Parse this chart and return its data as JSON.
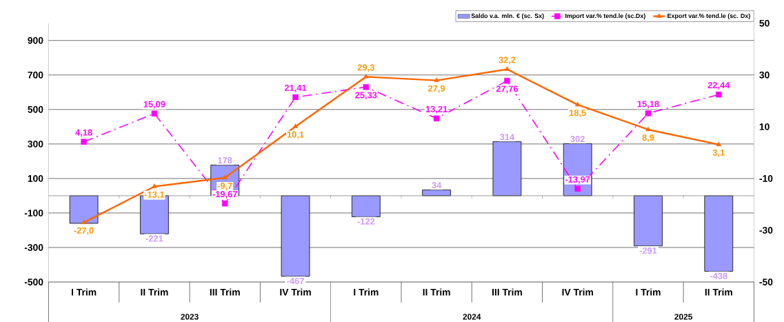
{
  "chart_data": {
    "type": "bar",
    "categories": [
      "I Trim",
      "II Trim",
      "III Trim",
      "IV Trim",
      "I Trim",
      "II Trim",
      "III Trim",
      "IV Trim",
      "I Trim",
      "II Trim"
    ],
    "series": [
      {
        "name": "Saldo v.a. mln. € (sc. Sx)",
        "color": "#9999ff",
        "values": [
          -160,
          -221,
          178,
          -467,
          -122,
          34,
          314,
          302,
          -291,
          -438
        ],
        "value_labels": [
          null,
          "-221",
          "178",
          "-467",
          "-122",
          "34",
          "314",
          "302",
          "-291",
          "-438"
        ]
      },
      {
        "type": "line",
        "axis": "y2",
        "name": "Import var.% tend.le (sc.Dx)",
        "color": "#ff00ff",
        "marker": "square",
        "line_style": "dashdot",
        "values": [
          4.18,
          15.09,
          -19.67,
          21.41,
          25.33,
          13.21,
          27.76,
          -13.97,
          15.18,
          22.44
        ],
        "value_labels": [
          "4,18",
          "15,09",
          "-19,67",
          "21,41",
          "25,33",
          "13,21",
          "27,76",
          "-13,97",
          "15,18",
          "22,44"
        ]
      },
      {
        "type": "line",
        "axis": "y2",
        "name": "Export var.% tend.le (sc. Dx)",
        "color": "#ff6600",
        "marker": "triangle",
        "line_style": "solid",
        "values": [
          -27.0,
          -13.1,
          -9.7,
          10.1,
          29.3,
          27.9,
          32.2,
          18.5,
          8.9,
          3.1
        ],
        "value_labels": [
          "-27,0",
          "-13,1",
          "-9,7",
          "10,1",
          "29,3",
          "27,9",
          "32,2",
          "18,5",
          "8,9",
          "3,1"
        ]
      }
    ],
    "ylim": [
      -500,
      1000
    ],
    "yticks": [
      -500,
      -300,
      -100,
      100,
      300,
      500,
      700,
      900
    ],
    "y2lim": [
      -50,
      50
    ],
    "y2ticks": [
      -50,
      -30,
      -10,
      10,
      30,
      50
    ],
    "grid": "y",
    "legend": "top right",
    "annotations": [
      "2023",
      "2024",
      "2025"
    ]
  }
}
